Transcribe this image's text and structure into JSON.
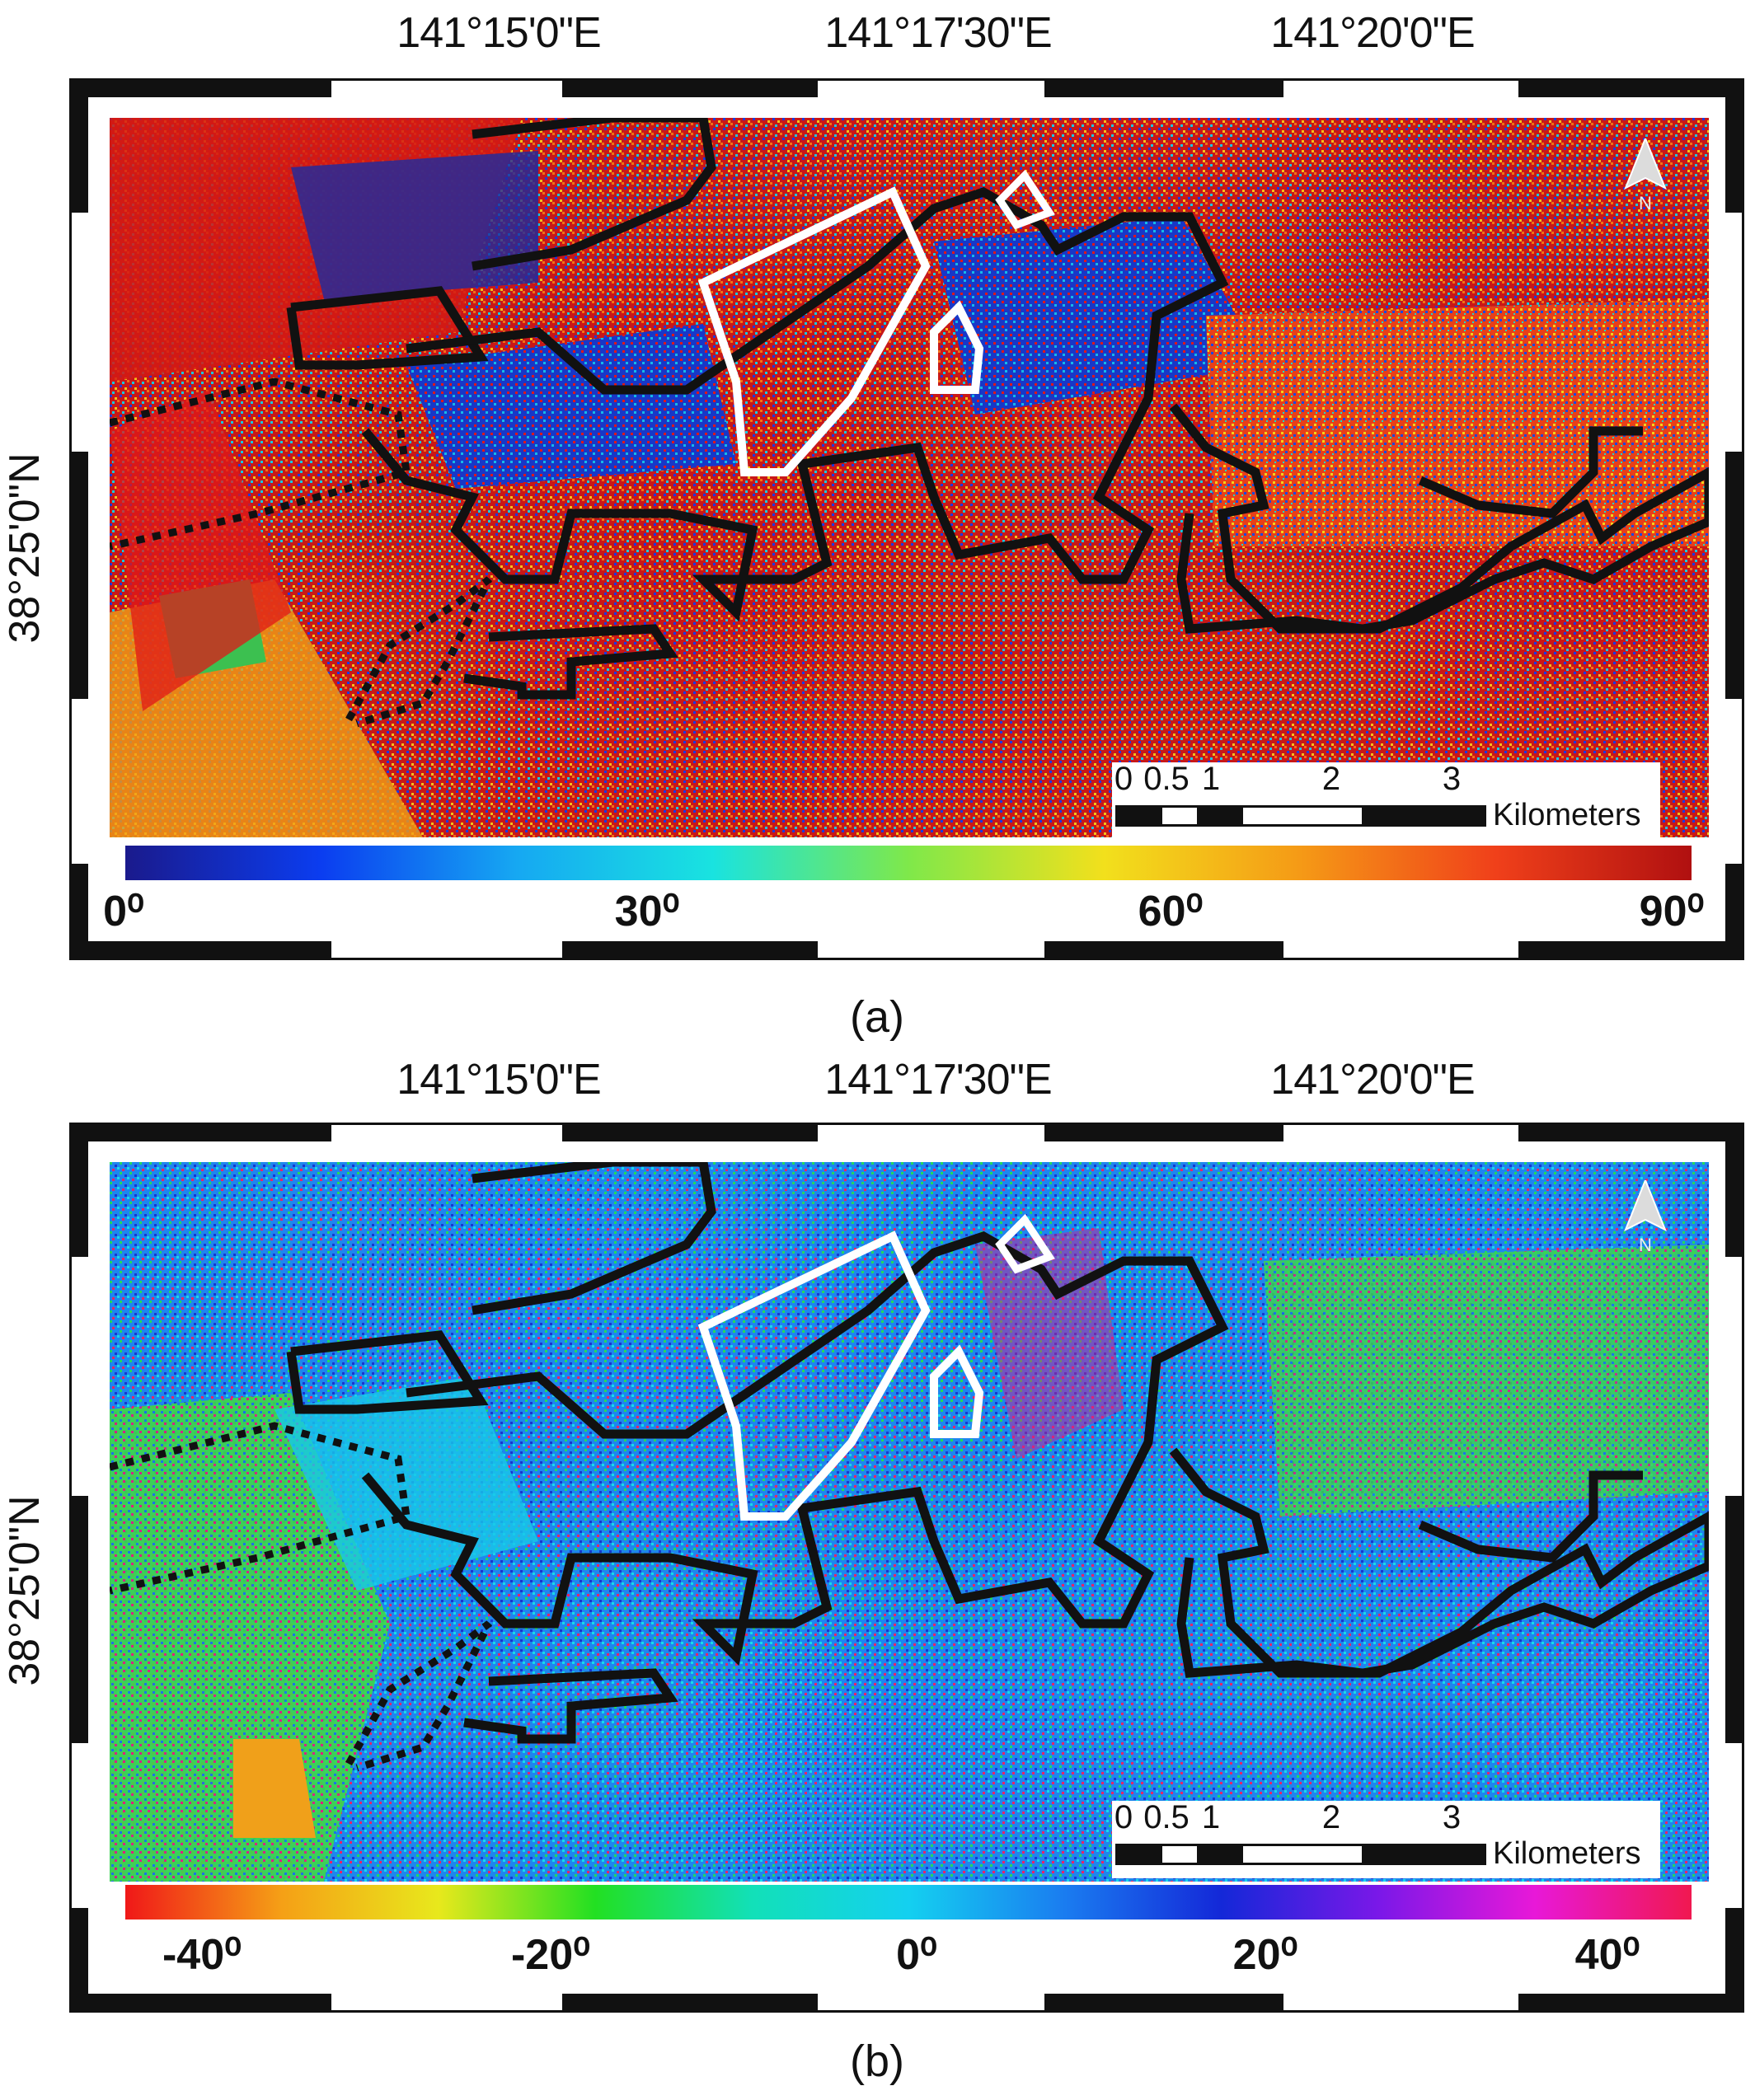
{
  "panels": [
    {
      "id": "a",
      "caption": "(a)",
      "lon_labels": [
        "141°15'0\"E",
        "141°17'30\"E",
        "141°20'0\"E"
      ],
      "lat_label": "38°25'0\"N",
      "scale_bar": {
        "ticks": [
          "0",
          "0.5",
          "1",
          "2",
          "3"
        ],
        "units": "Kilometers"
      },
      "colorbar": {
        "labels": [
          "0⁰",
          "30⁰",
          "60⁰",
          "90⁰"
        ],
        "colors": [
          "#1a1a8c",
          "#0b3df0",
          "#16a8f2",
          "#19e3e0",
          "#7fe84a",
          "#f2e01c",
          "#f59a16",
          "#f0401a",
          "#b01010"
        ]
      }
    },
    {
      "id": "b",
      "caption": "(b)",
      "lon_labels": [
        "141°15'0\"E",
        "141°17'30\"E",
        "141°20'0\"E"
      ],
      "lat_label": "38°25'0\"N",
      "scale_bar": {
        "ticks": [
          "0",
          "0.5",
          "1",
          "2",
          "3"
        ],
        "units": "Kilometers"
      },
      "colorbar": {
        "labels": [
          "-40⁰",
          "-20⁰",
          "0⁰",
          "20⁰",
          "40⁰"
        ],
        "colors": [
          "#f01818",
          "#f5a016",
          "#e8e81c",
          "#22e022",
          "#12e0b8",
          "#14d0f0",
          "#1a7cf0",
          "#1428d8",
          "#7a18e8",
          "#e818d8",
          "#f01850"
        ]
      }
    }
  ]
}
